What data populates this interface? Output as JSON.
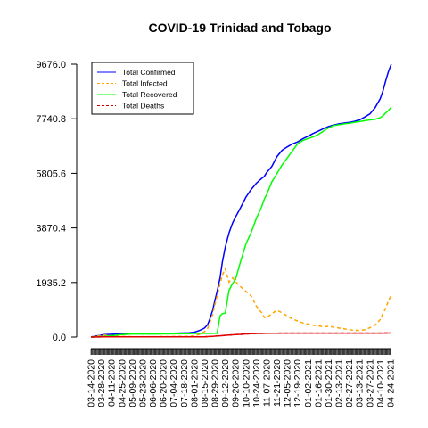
{
  "chart_data": {
    "type": "line",
    "title": "COVID-19 Trinidad and Tobago",
    "xlabel": "",
    "ylabel": "",
    "ylim": [
      0,
      9676.0
    ],
    "yticks": [
      "0.0",
      "1935.2",
      "3870.4",
      "5805.6",
      "7740.8",
      "9676.0"
    ],
    "xticks": [
      "03-14-2020",
      "03-28-2020",
      "04-11-2020",
      "04-25-2020",
      "05-09-2020",
      "05-23-2020",
      "06-06-2020",
      "06-20-2020",
      "07-04-2020",
      "07-18-2020",
      "08-01-2020",
      "08-15-2020",
      "08-29-2020",
      "09-12-2020",
      "09-26-2020",
      "10-10-2020",
      "10-24-2020",
      "11-07-2020",
      "11-21-2020",
      "12-05-2020",
      "12-19-2020",
      "01-02-2021",
      "01-16-2021",
      "01-30-2021",
      "02-13-2021",
      "02-27-2021",
      "03-13-2021",
      "03-27-2021",
      "04-10-2021",
      "04-24-2021"
    ],
    "x": [
      "2020-03-14",
      "2020-04-01",
      "2020-04-25",
      "2020-05-09",
      "2020-06-06",
      "2020-07-04",
      "2020-07-25",
      "2020-08-01",
      "2020-08-08",
      "2020-08-15",
      "2020-08-19",
      "2020-08-22",
      "2020-08-26",
      "2020-08-29",
      "2020-09-01",
      "2020-09-05",
      "2020-09-08",
      "2020-09-12",
      "2020-09-17",
      "2020-09-22",
      "2020-09-26",
      "2020-10-03",
      "2020-10-10",
      "2020-10-17",
      "2020-10-24",
      "2020-10-31",
      "2020-11-04",
      "2020-11-07",
      "2020-11-14",
      "2020-11-21",
      "2020-11-28",
      "2020-12-05",
      "2020-12-12",
      "2020-12-19",
      "2020-12-26",
      "2021-01-02",
      "2021-01-09",
      "2021-01-16",
      "2021-01-23",
      "2021-01-30",
      "2021-02-06",
      "2021-02-13",
      "2021-02-20",
      "2021-02-27",
      "2021-03-06",
      "2021-03-13",
      "2021-03-20",
      "2021-03-27",
      "2021-04-03",
      "2021-04-10",
      "2021-04-14",
      "2021-04-17",
      "2021-04-21",
      "2021-04-25"
    ],
    "series": [
      {
        "name": "Total Confirmed",
        "color": "#0000ff",
        "dash": "",
        "values": [
          2,
          90,
          115,
          116,
          123,
          133,
          148,
          170,
          230,
          320,
          440,
          630,
          960,
          1300,
          1620,
          2100,
          2650,
          3180,
          3690,
          4050,
          4260,
          4600,
          4960,
          5230,
          5450,
          5620,
          5700,
          5830,
          6050,
          6400,
          6620,
          6740,
          6850,
          6920,
          7030,
          7120,
          7220,
          7300,
          7390,
          7470,
          7520,
          7560,
          7590,
          7610,
          7650,
          7700,
          7800,
          7910,
          8130,
          8450,
          8750,
          9050,
          9400,
          9676
        ]
      },
      {
        "name": "Total Infected",
        "color": "#ffa500",
        "dash": "4,3",
        "values": [
          2,
          70,
          25,
          8,
          14,
          18,
          25,
          40,
          95,
          190,
          300,
          500,
          820,
          1150,
          1460,
          1870,
          2190,
          2420,
          1950,
          2100,
          1960,
          1780,
          1620,
          1460,
          1100,
          870,
          700,
          680,
          830,
          950,
          860,
          750,
          640,
          570,
          500,
          460,
          420,
          400,
          360,
          380,
          350,
          320,
          290,
          260,
          240,
          230,
          260,
          330,
          420,
          620,
          840,
          1000,
          1270,
          1500
        ]
      },
      {
        "name": "Total Recovered",
        "color": "#00ff00",
        "dash": "",
        "values": [
          0,
          20,
          88,
          106,
          108,
          113,
          119,
          125,
          130,
          130,
          130,
          130,
          130,
          130,
          130,
          750,
          830,
          850,
          1650,
          1900,
          2050,
          2700,
          3300,
          3700,
          4200,
          4600,
          4900,
          5050,
          5500,
          5800,
          6100,
          6350,
          6600,
          6850,
          6970,
          7040,
          7100,
          7180,
          7300,
          7420,
          7500,
          7530,
          7560,
          7580,
          7610,
          7640,
          7670,
          7700,
          7720,
          7780,
          7850,
          7940,
          8030,
          8150
        ]
      },
      {
        "name": "Total Deaths",
        "color": "#cc0000",
        "dash": "4,3",
        "values": [
          0,
          6,
          8,
          8,
          8,
          8,
          8,
          8,
          9,
          11,
          15,
          20,
          25,
          32,
          38,
          45,
          52,
          60,
          68,
          78,
          85,
          95,
          110,
          120,
          125,
          130,
          130,
          132,
          135,
          137,
          138,
          140,
          140,
          140,
          140,
          140,
          140,
          140,
          140,
          140,
          140,
          140,
          140,
          140,
          140,
          140,
          140,
          140,
          140,
          140,
          140,
          141,
          142,
          142
        ]
      },
      {
        "name": "Total Deaths (solid)",
        "color": "#e00000",
        "dash": "",
        "values": [
          0,
          6,
          8,
          8,
          8,
          8,
          8,
          8,
          9,
          11,
          15,
          20,
          25,
          32,
          38,
          45,
          52,
          60,
          68,
          78,
          85,
          95,
          110,
          120,
          125,
          130,
          130,
          132,
          135,
          137,
          138,
          140,
          140,
          140,
          140,
          140,
          140,
          140,
          140,
          140,
          140,
          140,
          140,
          140,
          140,
          140,
          140,
          140,
          140,
          140,
          140,
          141,
          142,
          142
        ]
      }
    ],
    "legend": {
      "placement": "top-left",
      "entries": [
        "Total Confirmed",
        "Total Infected",
        "Total Recovered",
        "Total Deaths"
      ]
    },
    "grid": false
  }
}
